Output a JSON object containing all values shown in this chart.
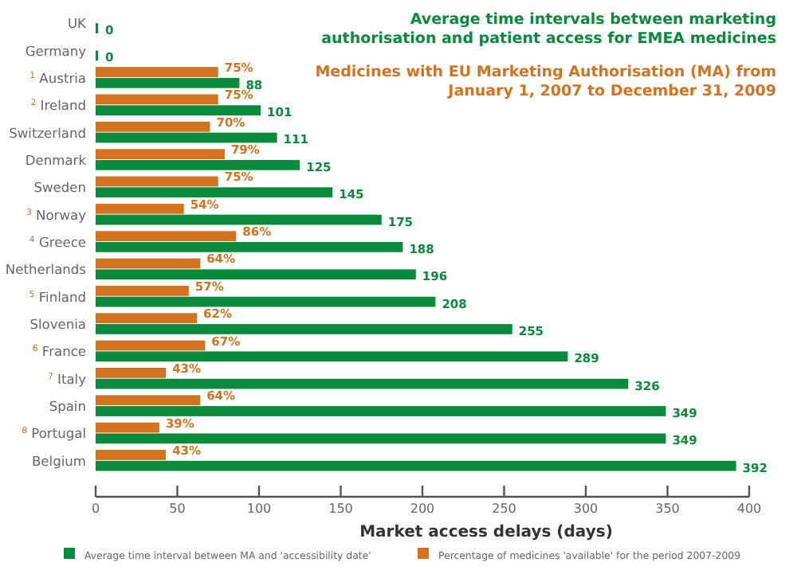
{
  "chart_data": {
    "type": "bar",
    "orientation": "horizontal",
    "title": "Average time intervals between marketing authorisation and patient access for EMEA medicines",
    "subtitle": "Medicines with EU Marketing Authorisation (MA) from January 1, 2007 to December 31, 2009",
    "xlabel": "Market access delays (days)",
    "categories": [
      "UK",
      "Germany",
      "$^{1}$ Austria",
      "$^{2}$ Ireland",
      "Switzerland",
      "Denmark",
      "Sweden",
      "$^{3}$ Norway",
      "$^{4}$ Greece",
      "Netherlands",
      "$^{5}$ Finland",
      "Slovenia",
      "$^{6}$ France",
      "$^{7}$ Italy",
      "Spain",
      "$^{8}$ Portugal",
      "Belgium"
    ],
    "series": [
      {
        "name": "Percentage of medicines 'available' for the period 2007-2009",
        "color": "#d4731f",
        "values": [
          null,
          null,
          75,
          75,
          70,
          79,
          75,
          54,
          86,
          64,
          57,
          62,
          67,
          43,
          64,
          39,
          43
        ],
        "value_labels": [
          null,
          null,
          "75%",
          "75%",
          "70%",
          "79%",
          "75%",
          "54%",
          "86%",
          "64%",
          "57%",
          "62%",
          "67%",
          "43%",
          "64%",
          "39%",
          "43%"
        ]
      },
      {
        "name": "Average time interval between MA and 'accessibility date'",
        "color": "#0a8a3c",
        "values": [
          0,
          0,
          88,
          101,
          111,
          125,
          145,
          175,
          188,
          196,
          208,
          255,
          289,
          326,
          349,
          349,
          392
        ],
        "value_labels": [
          "0",
          "0",
          "88",
          "101",
          "111",
          "125",
          "145",
          "175",
          "188",
          "196",
          "208",
          "255",
          "289",
          "326",
          "349",
          "349",
          "392"
        ]
      }
    ],
    "xlim": [
      0,
      400
    ],
    "xticks": [
      0,
      50,
      100,
      150,
      200,
      250,
      300,
      350,
      400
    ],
    "legend": "bottom",
    "grid": false
  }
}
